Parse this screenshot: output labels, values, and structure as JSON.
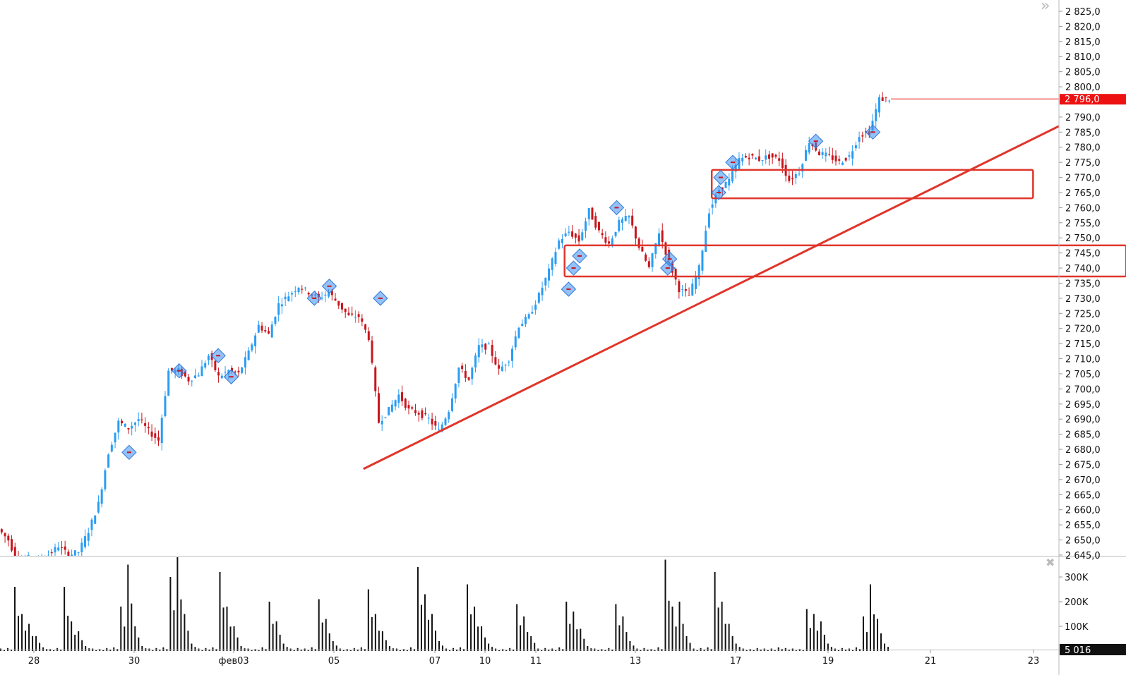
{
  "chart_data": {
    "type": "candlestick",
    "instrument_price_axis": {
      "min": 2645,
      "max": 2825,
      "step": 5
    },
    "x_tick_labels": [
      "28",
      "30",
      "фев03",
      "05",
      "07",
      "10",
      "11",
      "13",
      "17",
      "19",
      "21",
      "23"
    ],
    "closes": [
      2653.6,
      2650,
      2642,
      2644,
      2643,
      2645,
      2648,
      2645,
      2646,
      2653,
      2662,
      2679,
      2689,
      2687,
      2690,
      2686,
      2683,
      2706,
      2706,
      2703,
      2705,
      2711,
      2704,
      2706,
      2705,
      2712,
      2721,
      2718,
      2728,
      2731,
      2734,
      2732,
      2730,
      2732,
      2728,
      2724,
      2724,
      2717,
      2689,
      2693,
      2698,
      2693,
      2692,
      2690,
      2686,
      2693,
      2707,
      2703,
      2714,
      2714,
      2706,
      2710,
      2721,
      2724,
      2731,
      2739,
      2749,
      2752,
      2749,
      2759,
      2752,
      2748,
      2755,
      2757,
      2747,
      2740,
      2752,
      2742,
      2733,
      2731,
      2740,
      2759,
      2766,
      2769,
      2776,
      2777,
      2776,
      2777,
      2776,
      2769,
      2772,
      2782,
      2778,
      2777,
      2775,
      2777,
      2784,
      2785,
      2796,
      2796
    ],
    "last_price": 2796.0,
    "last_price_label": "2 796,0",
    "markers": [
      {
        "index": 12.9,
        "price": 2679
      },
      {
        "index": 17.9,
        "price": 2706
      },
      {
        "index": 21.8,
        "price": 2711
      },
      {
        "index": 23.1,
        "price": 2704
      },
      {
        "index": 31.4,
        "price": 2730
      },
      {
        "index": 32.9,
        "price": 2734
      },
      {
        "index": 38,
        "price": 2730
      },
      {
        "index": 56.8,
        "price": 2733
      },
      {
        "index": 57.3,
        "price": 2740
      },
      {
        "index": 57.9,
        "price": 2744
      },
      {
        "index": 61.6,
        "price": 2760
      },
      {
        "index": 66.9,
        "price": 2743
      },
      {
        "index": 66.7,
        "price": 2740
      },
      {
        "index": 71.8,
        "price": 2765
      },
      {
        "index": 72,
        "price": 2770
      },
      {
        "index": 73.2,
        "price": 2775
      },
      {
        "index": 81.5,
        "price": 2782
      },
      {
        "index": 87.2,
        "price": 2785
      }
    ],
    "drawings": {
      "color": "#e0352b",
      "trend_line": {
        "from": {
          "index": 36.3,
          "price": 2673.5
        },
        "to": {
          "index": 105.8,
          "price": 2787
        }
      },
      "rectangles": [
        {
          "from_index": 56.4,
          "to_index": 112.5,
          "top": 2747.5,
          "bottom": 2737.2
        },
        {
          "from_index": 71.1,
          "to_index": 103.2,
          "top": 2772.5,
          "bottom": 2763.1
        }
      ]
    },
    "volume": {
      "axis_labels": [
        "300K",
        "200K",
        "100K"
      ],
      "last_volume_label": "5 016",
      "values_k": [
        10,
        12,
        260,
        150,
        110,
        60,
        15,
        8,
        12,
        260,
        120,
        80,
        20,
        10,
        8,
        12,
        15,
        180,
        350,
        100,
        20,
        10,
        12,
        15,
        300,
        380,
        150,
        30,
        10,
        12,
        15,
        320,
        180,
        100,
        20,
        10,
        8,
        15,
        200,
        120,
        30,
        10,
        12,
        10,
        15,
        210,
        130,
        40,
        10,
        8,
        12,
        15,
        250,
        150,
        80,
        20,
        10,
        8,
        15,
        340,
        230,
        150,
        40,
        10,
        12,
        15,
        270,
        180,
        100,
        30,
        10,
        8,
        12,
        190,
        140,
        60,
        10,
        12,
        10,
        15,
        200,
        160,
        90,
        20,
        10,
        8,
        12,
        190,
        140,
        40,
        10,
        12,
        8,
        15,
        370,
        180,
        200,
        60,
        10,
        12,
        15,
        320,
        200,
        110,
        30,
        10,
        8,
        12,
        10,
        10,
        15,
        12,
        10,
        8,
        170,
        150,
        120,
        30,
        10,
        12,
        10,
        15,
        140,
        270,
        130,
        30
      ]
    },
    "colors": {
      "up": "#2a9df4",
      "down": "#c8161d",
      "marker": "#3d8ef0",
      "last_price_bg": "#ee1111",
      "volume": "#111111"
    }
  },
  "ui": {
    "collapse_icon": "»",
    "close_icon": "✖"
  }
}
